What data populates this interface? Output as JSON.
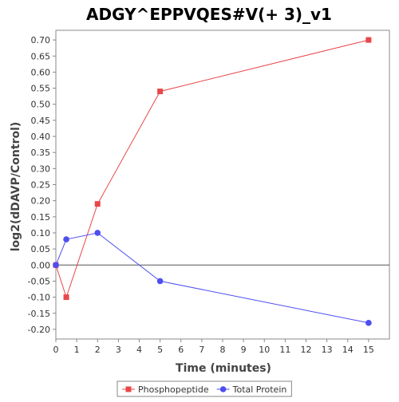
{
  "chart_data": {
    "type": "line",
    "title": "ADGY^EPPVQES#V(+ 3)_v1",
    "xlabel": "Time (minutes)",
    "ylabel": "log2(dDAVP/Control)",
    "xlim": [
      0,
      16
    ],
    "ylim": [
      -0.23,
      0.73
    ],
    "x_ticks": [
      0,
      1,
      2,
      3,
      4,
      5,
      6,
      7,
      8,
      9,
      10,
      11,
      12,
      13,
      14,
      15
    ],
    "y_ticks": [
      -0.2,
      -0.15,
      -0.1,
      -0.05,
      0.0,
      0.05,
      0.1,
      0.15,
      0.2,
      0.25,
      0.3,
      0.35,
      0.4,
      0.45,
      0.5,
      0.55,
      0.6,
      0.65,
      0.7
    ],
    "y_tick_labels": [
      "-0.20",
      "-0.15",
      "-0.10",
      "-0.05",
      "0.00",
      "0.05",
      "0.10",
      "0.15",
      "0.20",
      "0.25",
      "0.30",
      "0.35",
      "0.40",
      "0.45",
      "0.50",
      "0.55",
      "0.60",
      "0.65",
      "0.70"
    ],
    "zero_line": true,
    "grid": false,
    "legend_position": "bottom",
    "series": [
      {
        "name": "Phosphopeptide",
        "color": "#e8474a",
        "marker": "square",
        "x": [
          0,
          0.5,
          2,
          5,
          15
        ],
        "y": [
          0.0,
          -0.1,
          0.19,
          0.54,
          0.7
        ]
      },
      {
        "name": "Total Protein",
        "color": "#4e4ef0",
        "marker": "circle",
        "x": [
          0,
          0.5,
          2,
          5,
          15
        ],
        "y": [
          0.0,
          0.08,
          0.1,
          -0.05,
          -0.18
        ]
      }
    ]
  }
}
